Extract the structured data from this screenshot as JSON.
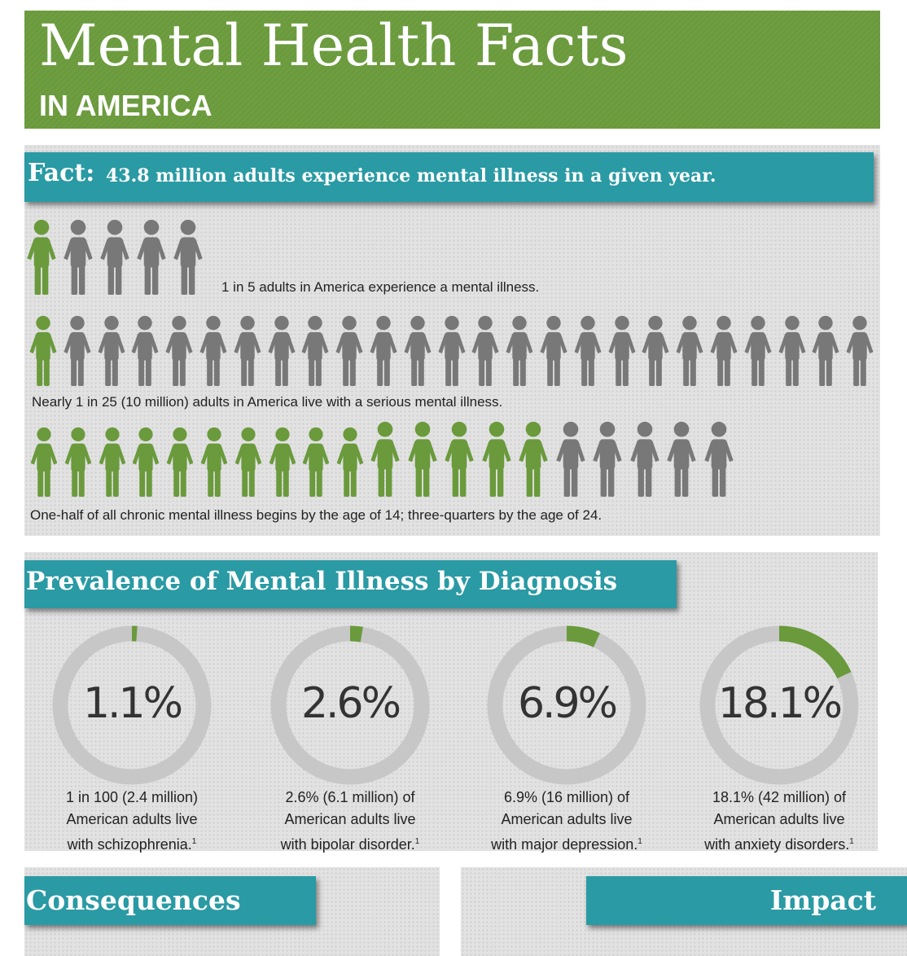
{
  "header": {
    "title": "Mental Health Facts",
    "subtitle": "IN AMERICA"
  },
  "colors": {
    "green": "#6a9a3c",
    "teal": "#2a9aa4",
    "gray": "#787878",
    "ring_gray": "#c7c7c7"
  },
  "fact_section": {
    "label": "Fact:",
    "text": "43.8 million adults experience mental illness in a given year.",
    "rows": [
      {
        "total": 5,
        "highlighted": 1,
        "caption": "1 in 5 adults in America experience a mental illness."
      },
      {
        "total": 25,
        "highlighted": 1,
        "caption": "Nearly 1 in 25 (10 million) adults in America live with a serious mental illness."
      },
      {
        "total": 20,
        "highlighted": 15,
        "caption": "One-half of all chronic mental illness begins by the age of 14; three-quarters by the age of 24."
      }
    ]
  },
  "prevalence_section": {
    "title": "Prevalence of Mental Illness by Diagnosis",
    "items": [
      {
        "percent_value": 1.1,
        "label": "1.1%",
        "caption_lines": [
          "1 in 100 (2.4 million)",
          "American adults live",
          "with schizophrenia."
        ],
        "footnote": "1"
      },
      {
        "percent_value": 2.6,
        "label": "2.6%",
        "caption_lines": [
          "2.6% (6.1 million) of",
          "American adults live",
          "with bipolar disorder."
        ],
        "footnote": "1"
      },
      {
        "percent_value": 6.9,
        "label": "6.9%",
        "caption_lines": [
          "6.9% (16 million) of",
          "American adults live",
          "with major depression."
        ],
        "footnote": "1"
      },
      {
        "percent_value": 18.1,
        "label": "18.1%",
        "caption_lines": [
          "18.1% (42 million) of",
          "American adults live",
          "with anxiety disorders."
        ],
        "footnote": "1"
      }
    ]
  },
  "consequences_section": {
    "title": "Consequences"
  },
  "impact_section": {
    "title": "Impact"
  }
}
